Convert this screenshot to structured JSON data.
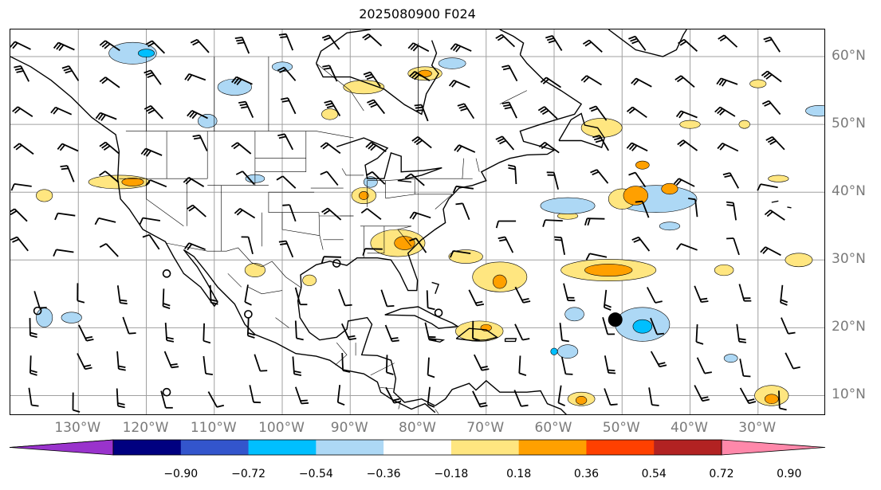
{
  "title": "2025080900 F024",
  "map": {
    "projection": "cylindrical",
    "lon_range": [
      -140,
      -20
    ],
    "lat_range": [
      7,
      64
    ],
    "grid_lines": true,
    "longitude_labels": [
      "130°W",
      "120°W",
      "110°W",
      "100°W",
      "90°W",
      "80°W",
      "70°W",
      "60°W",
      "50°W",
      "40°W",
      "30°W"
    ],
    "latitude_labels": [
      "60°N",
      "50°N",
      "40°N",
      "30°N",
      "20°N",
      "10°N"
    ],
    "storm_marker": {
      "lon": -51,
      "lat": 21.2,
      "color": "#000000"
    },
    "wind_barbs": "shown across domain",
    "coastlines": true,
    "state_boundaries": true
  },
  "colorbar": {
    "labels": [
      "−0.90",
      "−0.72",
      "−0.54",
      "−0.36",
      "−0.18",
      "0.18",
      "0.36",
      "0.54",
      "0.72",
      "0.90"
    ],
    "colors": [
      "#9933cc",
      "#000080",
      "#3355cc",
      "#00bfff",
      "#add8f5",
      "#ffffff",
      "#ffe680",
      "#ffa000",
      "#ff4000",
      "#b22222",
      "#ff88aa"
    ],
    "extend": "both"
  }
}
